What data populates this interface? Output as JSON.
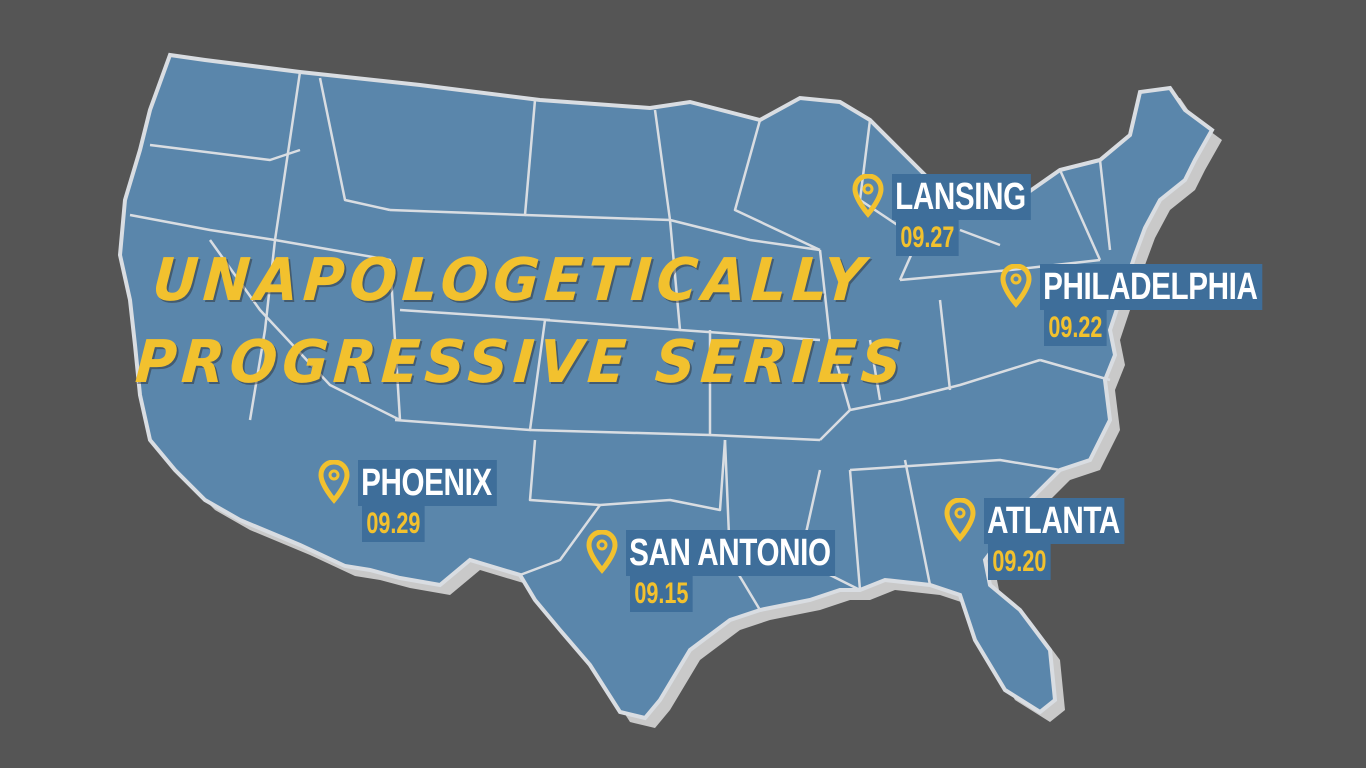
{
  "colors": {
    "background": "#555555",
    "land": "#5a86ab",
    "border": "#d9dde2",
    "shadow": "#cfcfcf",
    "title": "#f2c12e",
    "label_bg": "#3e6e9a",
    "date": "#f2c12e"
  },
  "title": {
    "line1": "UNAPOLOGETICALLY",
    "line2": "PROGRESSIVE SERIES"
  },
  "markers": [
    {
      "id": "lansing",
      "city": "LANSING",
      "date": "09.27",
      "icon": "map-pin-icon"
    },
    {
      "id": "philadelphia",
      "city": "PHILADELPHIA",
      "date": "09.22",
      "icon": "map-pin-icon"
    },
    {
      "id": "phoenix",
      "city": "PHOENIX",
      "date": "09.29",
      "icon": "map-pin-icon"
    },
    {
      "id": "san-antonio",
      "city": "SAN ANTONIO",
      "date": "09.15",
      "icon": "map-pin-icon"
    },
    {
      "id": "atlanta",
      "city": "ATLANTA",
      "date": "09.20",
      "icon": "map-pin-icon"
    }
  ]
}
